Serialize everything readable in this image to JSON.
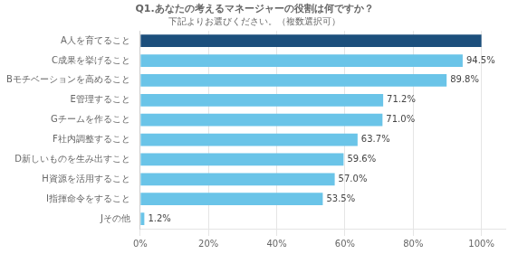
{
  "chart_data": {
    "type": "bar",
    "orientation": "horizontal",
    "title": "Q1.あなたの考えるマネージャーの役割は何ですか？",
    "subtitle": "下記よりお選びください。（複数選択可）",
    "categories": [
      "A人を育てること",
      "C成果を挙げること",
      "Bモチベーションを高めること",
      "E管理すること",
      "Gチームを作ること",
      "F社内調整すること",
      "D新しいものを生み出すこと",
      "H資源を活用すること",
      "I指揮命令をすること",
      "Jその他"
    ],
    "values": [
      100.0,
      94.5,
      89.8,
      71.2,
      71.0,
      63.7,
      59.6,
      57.0,
      53.5,
      1.2
    ],
    "value_labels": [
      null,
      "94.5%",
      "89.8%",
      "71.2%",
      "71.0%",
      "63.7%",
      "59.6%",
      "57.0%",
      "53.5%",
      "1.2%"
    ],
    "data_labels": true,
    "colors": [
      "#1c4f7c",
      "#6ac4e8",
      "#6ac4e8",
      "#6ac4e8",
      "#6ac4e8",
      "#6ac4e8",
      "#6ac4e8",
      "#6ac4e8",
      "#6ac4e8",
      "#6ac4e8"
    ],
    "xlim": [
      0,
      107
    ],
    "xticks": [
      {
        "value": 0,
        "label": "0%"
      },
      {
        "value": 20,
        "label": "20%"
      },
      {
        "value": 40,
        "label": "40%"
      },
      {
        "value": 60,
        "label": "60%"
      },
      {
        "value": 80,
        "label": "80%"
      },
      {
        "value": 100,
        "label": "100%"
      }
    ],
    "grid": true
  }
}
